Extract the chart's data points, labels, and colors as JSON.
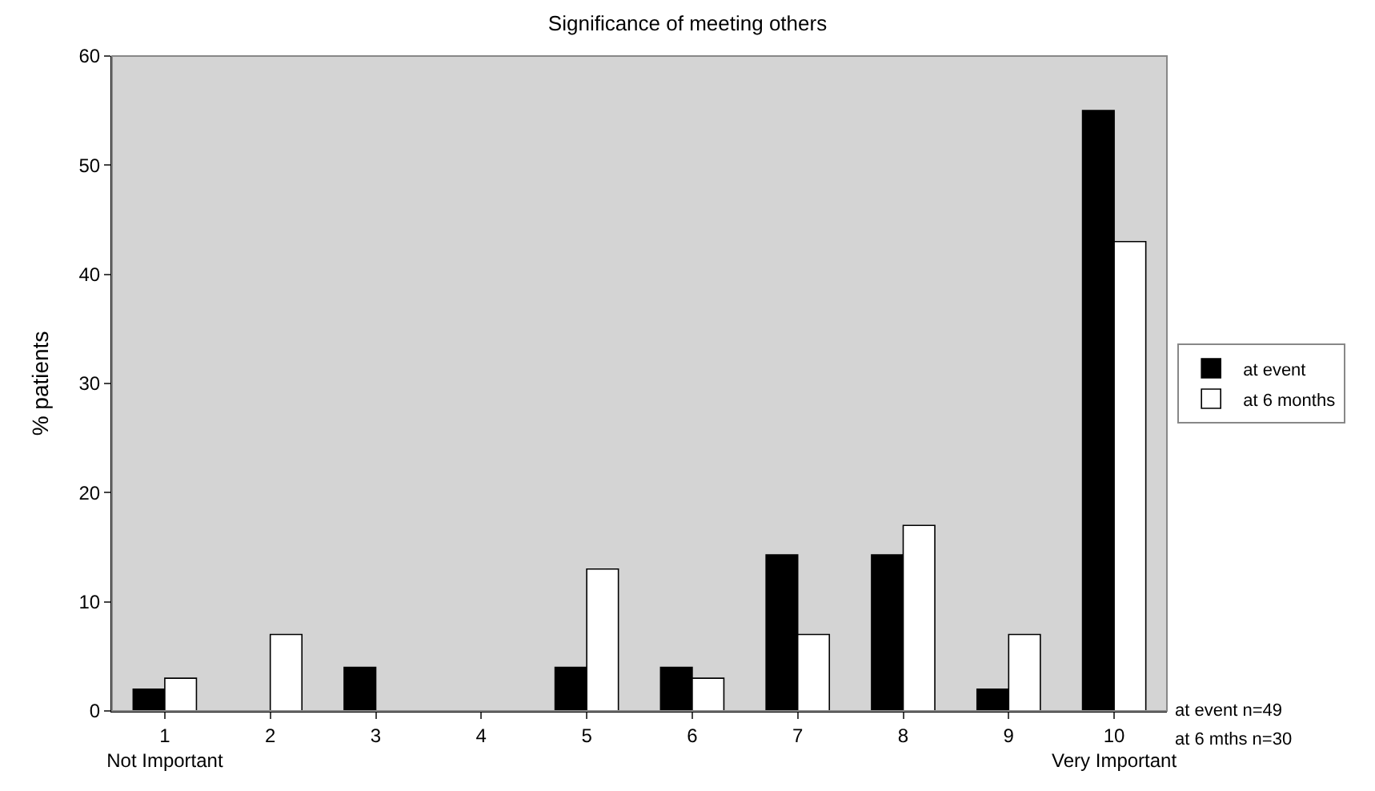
{
  "chart_data": {
    "type": "bar",
    "title": "Significance of meeting others",
    "ylabel": "% patients",
    "categories": [
      "1\nNot Important",
      "2",
      "3",
      "4",
      "5",
      "6",
      "7",
      "8",
      "9",
      "10\nVery Important"
    ],
    "series": [
      {
        "name": "at event",
        "color": "#000000",
        "values": [
          2,
          0,
          4,
          0,
          4,
          4,
          14.3,
          14.3,
          2,
          55
        ]
      },
      {
        "name": "at 6 months",
        "color": "#ffffff",
        "values": [
          3,
          7,
          0,
          0,
          13,
          3,
          7,
          17,
          7,
          43
        ]
      }
    ],
    "ylim": [
      0,
      60
    ],
    "yticks": [
      0,
      10,
      20,
      30,
      40,
      50,
      60
    ],
    "grid": false,
    "legend": "right",
    "annotations": [
      "at event n=49",
      "at 6 mths n=30"
    ]
  }
}
